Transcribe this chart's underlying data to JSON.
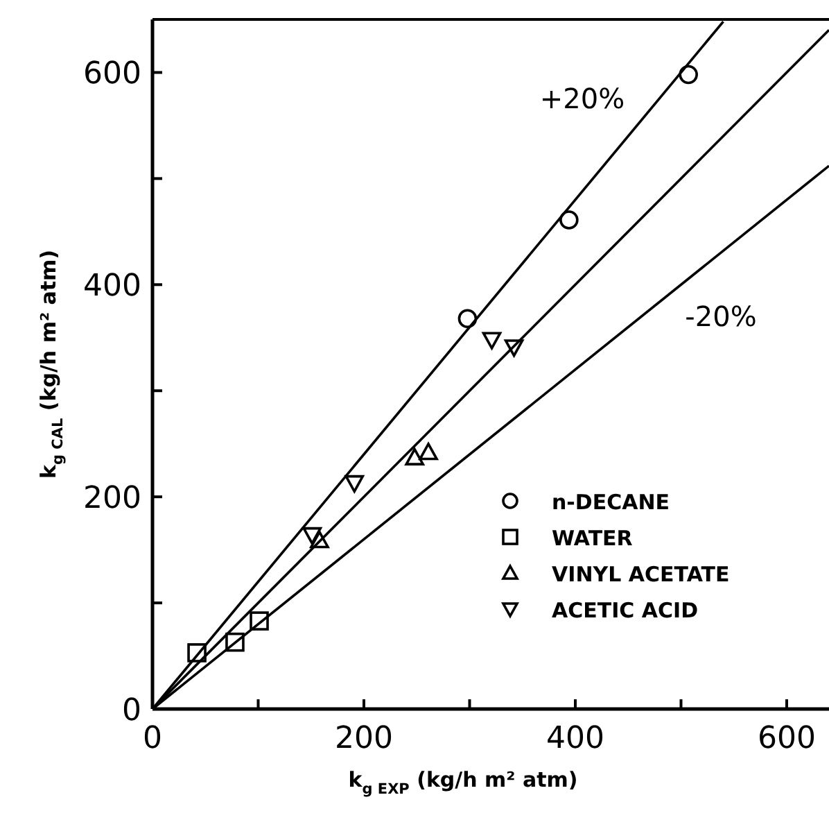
{
  "chart_data": {
    "type": "scatter",
    "xlabel": "k$_{g EXP}$ (kg/h m² atm)",
    "ylabel": "k$_{g CAL}$ (kg/h m² atm)",
    "xlim": [
      0,
      640
    ],
    "ylim": [
      0,
      650
    ],
    "xticks": [
      0,
      {
        "value": 100,
        "label": null
      },
      200,
      {
        "value": 300,
        "label": null
      },
      400,
      {
        "value": 500,
        "label": null
      },
      600
    ],
    "yticks": [
      0,
      {
        "value": 100,
        "label": null
      },
      200,
      {
        "value": 300,
        "label": null
      },
      400,
      {
        "value": 500,
        "label": null
      },
      600
    ],
    "grid": false,
    "legend": "bottom right",
    "annotations": [
      "+20%",
      "-20%"
    ],
    "series": [
      {
        "type": "line",
        "color": "#000000",
        "x": [
          0,
          540
        ],
        "values": [
          0,
          648
        ],
        "marker": "none",
        "line_style": "solid"
      },
      {
        "type": "line",
        "color": "#000000",
        "x": [
          0,
          640
        ],
        "values": [
          0,
          640
        ],
        "marker": "none",
        "line_style": "solid"
      },
      {
        "type": "line",
        "color": "#000000",
        "x": [
          0,
          640
        ],
        "values": [
          0,
          512
        ],
        "marker": "none",
        "line_style": "solid"
      },
      {
        "name": "n-DECANE",
        "color": "#000000",
        "marker": "circle",
        "x": [
          298,
          394,
          507
        ],
        "values": [
          368,
          461,
          598
        ]
      },
      {
        "name": "WATER",
        "color": "#000000",
        "marker": "square",
        "x": [
          42,
          78,
          101
        ],
        "values": [
          53,
          63,
          83
        ]
      },
      {
        "name": "VINYL ACETATE",
        "color": "#000000",
        "marker": "triangle",
        "x": [
          158,
          248,
          261
        ],
        "values": [
          159,
          237,
          242
        ]
      },
      {
        "name": "ACETIC ACID",
        "color": "#000000",
        "marker": "triangle-down",
        "x": [
          151,
          191,
          321,
          342
        ],
        "values": [
          164,
          213,
          348,
          341
        ]
      }
    ]
  }
}
